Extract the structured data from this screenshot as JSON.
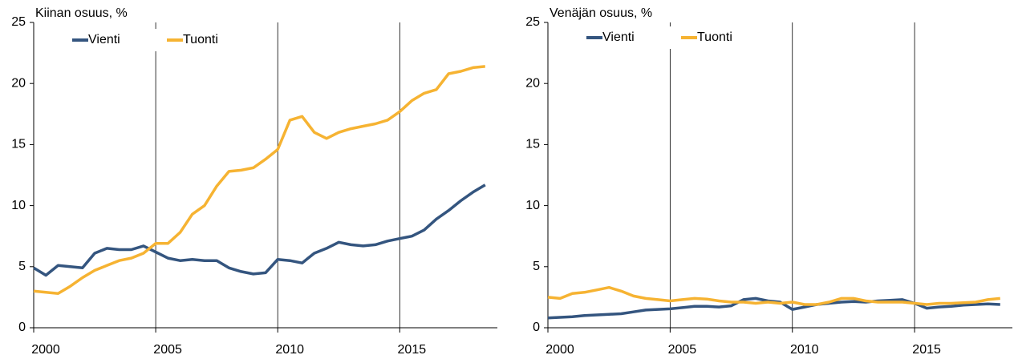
{
  "chart_data": [
    {
      "type": "line",
      "title": "Kiinan osuus, %",
      "x": [
        2000,
        2000.5,
        2001,
        2001.5,
        2002,
        2002.5,
        2003,
        2003.5,
        2004,
        2004.5,
        2005,
        2005.5,
        2006,
        2006.5,
        2007,
        2007.5,
        2008,
        2008.5,
        2009,
        2009.5,
        2010,
        2010.5,
        2011,
        2011.5,
        2012,
        2012.5,
        2013,
        2013.5,
        2014,
        2014.5,
        2015,
        2015.5,
        2016,
        2016.5,
        2017,
        2017.5,
        2018,
        2018.5
      ],
      "series": [
        {
          "name": "Vienti",
          "color": "#34557f",
          "values": [
            4.9,
            4.3,
            5.1,
            5.0,
            4.9,
            6.1,
            6.5,
            6.4,
            6.4,
            6.7,
            6.2,
            5.7,
            5.5,
            5.6,
            5.5,
            5.5,
            4.9,
            4.6,
            4.4,
            4.5,
            5.6,
            5.5,
            5.3,
            6.1,
            6.5,
            7.0,
            6.8,
            6.7,
            6.8,
            7.1,
            7.3,
            7.5,
            8.0,
            8.9,
            9.6,
            10.4,
            11.1,
            11.7
          ]
        },
        {
          "name": "Tuonti",
          "color": "#f6b332",
          "values": [
            3.0,
            2.9,
            2.8,
            3.4,
            4.1,
            4.7,
            5.1,
            5.5,
            5.7,
            6.1,
            6.9,
            6.9,
            7.8,
            9.3,
            10.0,
            11.6,
            12.8,
            12.9,
            13.1,
            13.8,
            14.6,
            17.0,
            17.3,
            16.0,
            15.5,
            16.0,
            16.3,
            16.5,
            16.7,
            17.0,
            17.7,
            18.6,
            19.2,
            19.5,
            20.8,
            21.0,
            21.3,
            21.4
          ]
        }
      ],
      "xlim": [
        2000,
        2019
      ],
      "xticks": [
        2000,
        2005,
        2010,
        2015
      ],
      "ylim": [
        0,
        25
      ],
      "yticks": [
        0,
        5,
        10,
        15,
        20,
        25
      ],
      "grid": "x",
      "legend": "top-left"
    },
    {
      "type": "line",
      "title": "Venäjän osuus, %",
      "x": [
        2000,
        2000.5,
        2001,
        2001.5,
        2002,
        2002.5,
        2003,
        2003.5,
        2004,
        2004.5,
        2005,
        2005.5,
        2006,
        2006.5,
        2007,
        2007.5,
        2008,
        2008.5,
        2009,
        2009.5,
        2010,
        2010.5,
        2011,
        2011.5,
        2012,
        2012.5,
        2013,
        2013.5,
        2014,
        2014.5,
        2015,
        2015.5,
        2016,
        2016.5,
        2017,
        2017.5,
        2018,
        2018.5
      ],
      "series": [
        {
          "name": "Vienti",
          "color": "#34557f",
          "values": [
            0.8,
            0.85,
            0.9,
            1.0,
            1.05,
            1.1,
            1.15,
            1.3,
            1.45,
            1.5,
            1.55,
            1.65,
            1.75,
            1.75,
            1.7,
            1.8,
            2.3,
            2.4,
            2.2,
            2.1,
            1.5,
            1.7,
            1.9,
            2.0,
            2.1,
            2.15,
            2.1,
            2.2,
            2.25,
            2.3,
            2.0,
            1.6,
            1.7,
            1.75,
            1.85,
            1.9,
            1.95,
            1.9
          ]
        },
        {
          "name": "Tuonti",
          "color": "#f6b332",
          "values": [
            2.5,
            2.4,
            2.8,
            2.9,
            3.1,
            3.3,
            3.0,
            2.6,
            2.4,
            2.3,
            2.2,
            2.3,
            2.4,
            2.35,
            2.2,
            2.1,
            2.1,
            2.0,
            2.1,
            2.0,
            2.1,
            1.9,
            1.9,
            2.1,
            2.4,
            2.4,
            2.2,
            2.1,
            2.1,
            2.1,
            2.0,
            1.9,
            2.0,
            2.0,
            2.05,
            2.1,
            2.3,
            2.4
          ]
        }
      ],
      "xlim": [
        2000,
        2019
      ],
      "xticks": [
        2000,
        2005,
        2010,
        2015
      ],
      "ylim": [
        0,
        25
      ],
      "yticks": [
        0,
        5,
        10,
        15,
        20,
        25
      ],
      "grid": "x",
      "legend": "top-left"
    }
  ]
}
